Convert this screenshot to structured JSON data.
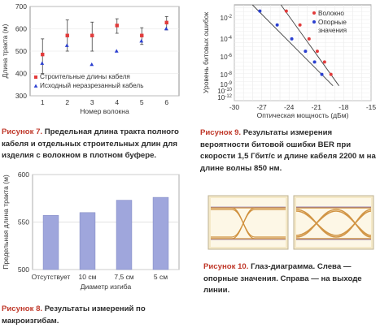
{
  "captions": {
    "fig7_lead": "Рисунок 7.",
    "fig7_body": "Предельная длина тракта полного кабеля и отдельных строительных длин для изделия с волокном в плотном буфере.",
    "fig8_lead": "Рисунок 8.",
    "fig8_body": "Результаты измерений по макроизгибам.",
    "fig9_lead": "Рисунок 9.",
    "fig9_body": "Результаты измерения вероятности битовой ошибки BER при скорости 1,5 Гбит/с и длине кабеля 2200 м на длине волны 850 нм.",
    "fig10_lead": "Рисунок 10.",
    "fig10_body": "Глаз-диаграмма. Слева — опорные значения. Справа — на выходе линии."
  },
  "chart_data": [
    {
      "id": "fig7",
      "type": "scatter",
      "xlabel": "Номер волокна",
      "ylabel": "Длина тракта (м)",
      "xlim": [
        0.5,
        6.5
      ],
      "ylim": [
        300,
        700
      ],
      "x_ticks": [
        "1",
        "2",
        "3",
        "4",
        "5",
        "6"
      ],
      "y_ticks": [
        "300",
        "400",
        "500",
        "600",
        "700"
      ],
      "series": [
        {
          "name": "Строительные длины кабеля",
          "color": "#e23b3b",
          "marker": "square",
          "x": [
            1,
            2,
            3,
            4,
            5,
            6
          ],
          "y": [
            485,
            570,
            570,
            615,
            570,
            628
          ],
          "err_low": [
            400,
            500,
            500,
            580,
            530,
            595
          ],
          "err_high": [
            555,
            640,
            630,
            645,
            605,
            655
          ]
        },
        {
          "name": "Исходный неразрезанный кабель",
          "color": "#2b3fd0",
          "marker": "triangle",
          "x": [
            1,
            2,
            3,
            4,
            5,
            6
          ],
          "y": [
            445,
            525,
            440,
            500,
            545,
            600
          ]
        }
      ]
    },
    {
      "id": "fig8",
      "type": "bar",
      "xlabel": "Диаметр изгиба",
      "ylabel": "Предельная длина тракта (м)",
      "categories": [
        "Отсутствует",
        "10 см",
        "7,5 см",
        "5 см"
      ],
      "values": [
        557,
        560,
        573,
        576
      ],
      "ylim": [
        500,
        600
      ],
      "y_ticks": [
        "500",
        "550",
        "600"
      ],
      "color": "#9fa6dc"
    },
    {
      "id": "fig9",
      "type": "line",
      "xlabel": "Оптическая мощность (дБм)",
      "ylabel": "Уровень битовых ошибок",
      "xlim": [
        -30,
        -15
      ],
      "x_ticks": [
        "-30",
        "-27",
        "-24",
        "-21",
        "-18",
        "-15"
      ],
      "y_ticks": [
        "10-2",
        "10-4",
        "10-6",
        "10-8",
        "10-9",
        "10-10",
        "10-12"
      ],
      "log_scale_y": true,
      "series": [
        {
          "name": "Волокно",
          "color": "#e23b3b",
          "x": [
            -24.3,
            -22.8,
            -21.8,
            -20.9,
            -20.1,
            -19.4
          ],
          "y_exp": [
            -1.4,
            -3.2,
            -5.0,
            -6.6,
            -8.0,
            -9.6
          ]
        },
        {
          "name": "Опорные значения",
          "color": "#2b3fd0",
          "x": [
            -27.2,
            -25.3,
            -23.7,
            -22.2,
            -21.2,
            -20.4
          ],
          "y_exp": [
            -1.4,
            -3.2,
            -5.0,
            -6.6,
            -8.0,
            -9.6
          ]
        }
      ]
    }
  ]
}
